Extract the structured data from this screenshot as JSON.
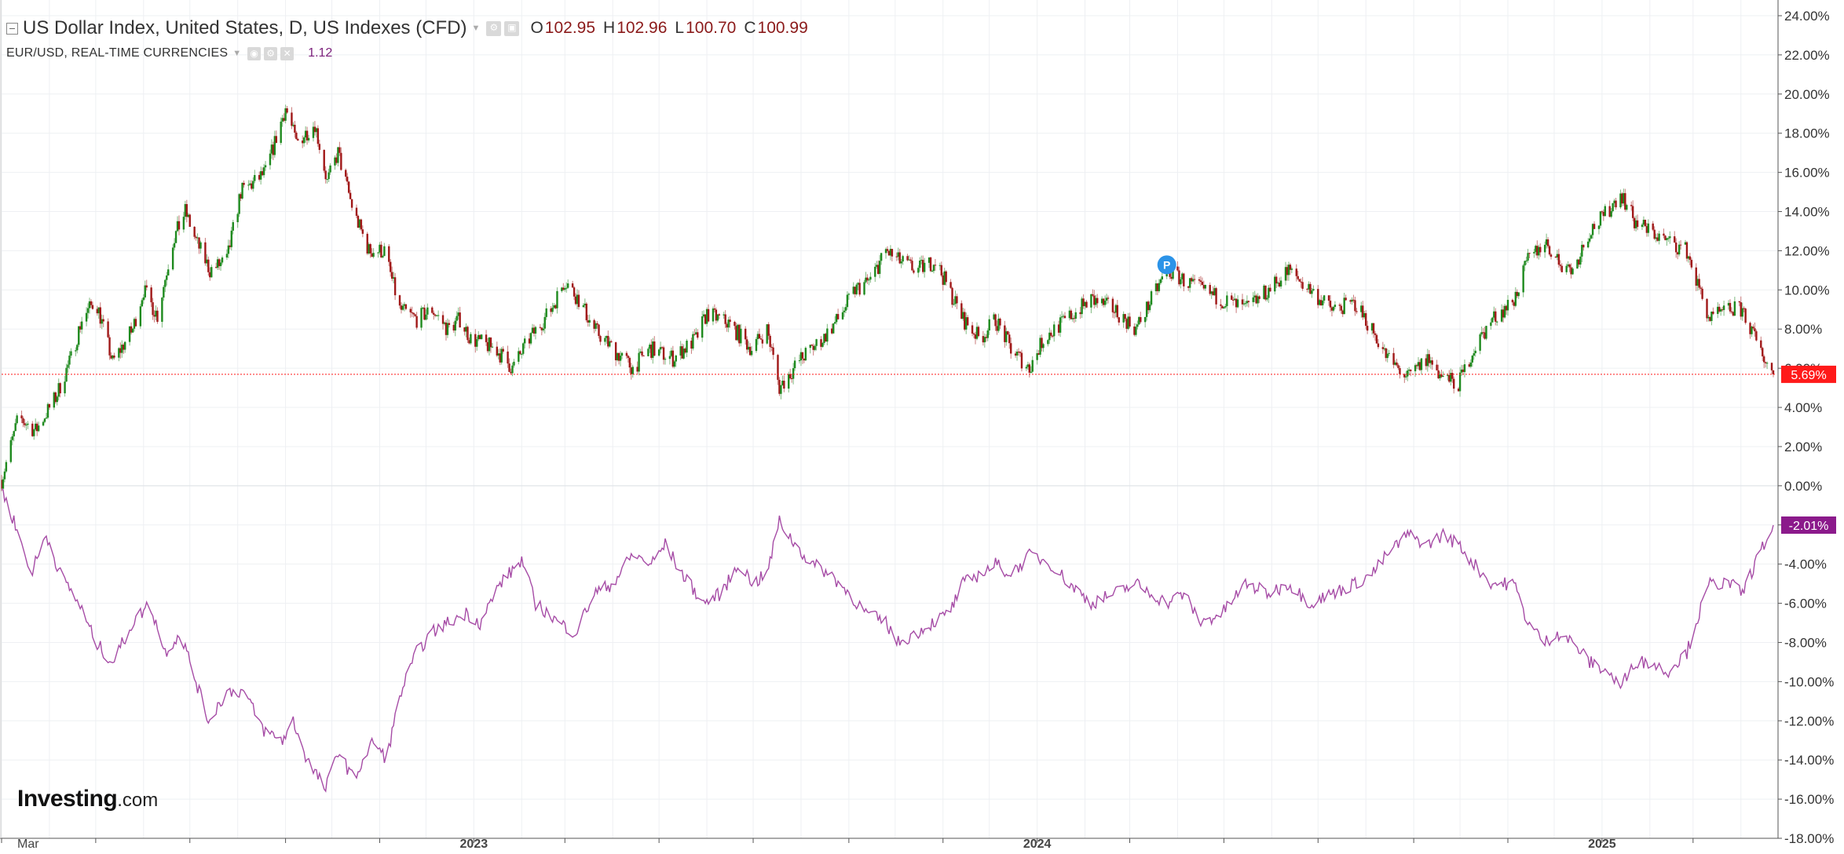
{
  "legend": {
    "main_title": "US Dollar Index, United States, D, US Indexes (CFD)",
    "ohlc": [
      {
        "key": "O",
        "value": "102.95"
      },
      {
        "key": "H",
        "value": "102.96"
      },
      {
        "key": "L",
        "value": "100.70"
      },
      {
        "key": "C",
        "value": "100.99"
      }
    ],
    "secondary_title": "EUR/USD, REAL-TIME CURRENCIES",
    "secondary_value": "1.12"
  },
  "logo": {
    "brand": "Investing",
    "suffix": ".com"
  },
  "colors": {
    "up_candle": "#1e8a1e",
    "down_candle": "#a01818",
    "eurusd_line": "#a64ca6",
    "current_marker": "#ff1a1a",
    "eurusd_marker": "#8b1a8b",
    "grid": "#eef0f3",
    "event_marker": "#2b93e8"
  },
  "chart_data": {
    "type": "line",
    "y_unit": "percent change",
    "ylim": [
      -18,
      24
    ],
    "y_ticks": [
      "24.00%",
      "22.00%",
      "20.00%",
      "18.00%",
      "16.00%",
      "14.00%",
      "12.00%",
      "10.00%",
      "8.00%",
      "6.00%",
      "4.00%",
      "2.00%",
      "0.00%",
      "-2.00%",
      "-4.00%",
      "-6.00%",
      "-8.00%",
      "-10.00%",
      "-12.00%",
      "-14.00%",
      "-16.00%",
      "-18.00%"
    ],
    "x_labels": [
      "Mar",
      "2023",
      "2024",
      "2025"
    ],
    "x_range": [
      "2022-03-01",
      "2025-04-22"
    ],
    "grid": true,
    "event_marker": {
      "label": "P",
      "date": "2024-03-25",
      "value": 11.2
    },
    "series": [
      {
        "name": "US Dollar Index",
        "style": "candlestick",
        "current_label": "5.69%",
        "last_value": 5.69,
        "points": [
          [
            "2022-03-01",
            0.3
          ],
          [
            "2022-03-12",
            3.5
          ],
          [
            "2022-03-23",
            2.8
          ],
          [
            "2022-04-05",
            4.5
          ],
          [
            "2022-04-15",
            6.5
          ],
          [
            "2022-04-22",
            8.5
          ],
          [
            "2022-05-01",
            9.5
          ],
          [
            "2022-05-12",
            6.3
          ],
          [
            "2022-05-25",
            8.0
          ],
          [
            "2022-06-01",
            10.0
          ],
          [
            "2022-06-10",
            8.7
          ],
          [
            "2022-06-20",
            12.5
          ],
          [
            "2022-06-28",
            14.0
          ],
          [
            "2022-07-05",
            12.5
          ],
          [
            "2022-07-14",
            11.0
          ],
          [
            "2022-07-25",
            11.5
          ],
          [
            "2022-08-03",
            15.0
          ],
          [
            "2022-08-12",
            15.5
          ],
          [
            "2022-08-19",
            16.0
          ],
          [
            "2022-09-01",
            19.3
          ],
          [
            "2022-09-08",
            17.5
          ],
          [
            "2022-09-20",
            18.5
          ],
          [
            "2022-09-28",
            15.5
          ],
          [
            "2022-10-05",
            17.0
          ],
          [
            "2022-10-15",
            14.0
          ],
          [
            "2022-10-25",
            12.0
          ],
          [
            "2022-11-04",
            12.0
          ],
          [
            "2022-11-14",
            9.0
          ],
          [
            "2022-11-25",
            8.5
          ],
          [
            "2022-12-05",
            9.0
          ],
          [
            "2022-12-15",
            8.0
          ],
          [
            "2022-12-23",
            8.5
          ],
          [
            "2022-12-30",
            7.5
          ],
          [
            "2023-01-15",
            7.0
          ],
          [
            "2023-01-26",
            6.0
          ],
          [
            "2023-02-06",
            7.5
          ],
          [
            "2023-02-20",
            9.0
          ],
          [
            "2023-03-01",
            10.5
          ],
          [
            "2023-03-10",
            9.5
          ],
          [
            "2023-03-20",
            8.0
          ],
          [
            "2023-04-01",
            7.0
          ],
          [
            "2023-04-14",
            6.0
          ],
          [
            "2023-04-25",
            7.0
          ],
          [
            "2023-05-10",
            6.5
          ],
          [
            "2023-05-25",
            7.5
          ],
          [
            "2023-06-01",
            8.8
          ],
          [
            "2023-06-15",
            8.3
          ],
          [
            "2023-06-30",
            7.0
          ],
          [
            "2023-07-10",
            8.0
          ],
          [
            "2023-07-18",
            5.0
          ],
          [
            "2023-08-01",
            6.5
          ],
          [
            "2023-08-15",
            7.5
          ],
          [
            "2023-08-25",
            8.5
          ],
          [
            "2023-09-05",
            10.0
          ],
          [
            "2023-09-15",
            10.5
          ],
          [
            "2023-09-25",
            12.0
          ],
          [
            "2023-10-03",
            11.5
          ],
          [
            "2023-10-15",
            11.0
          ],
          [
            "2023-10-27",
            11.5
          ],
          [
            "2023-11-05",
            10.0
          ],
          [
            "2023-11-14",
            8.5
          ],
          [
            "2023-11-25",
            7.5
          ],
          [
            "2023-12-05",
            8.5
          ],
          [
            "2023-12-15",
            7.0
          ],
          [
            "2023-12-27",
            6.0
          ],
          [
            "2024-01-05",
            7.5
          ],
          [
            "2024-01-20",
            8.5
          ],
          [
            "2024-02-05",
            9.5
          ],
          [
            "2024-02-20",
            9.0
          ],
          [
            "2024-03-05",
            8.0
          ],
          [
            "2024-03-15",
            9.5
          ],
          [
            "2024-03-25",
            11.0
          ],
          [
            "2024-04-05",
            10.5
          ],
          [
            "2024-04-16",
            10.0
          ],
          [
            "2024-04-30",
            9.5
          ],
          [
            "2024-05-15",
            9.0
          ],
          [
            "2024-05-30",
            10.0
          ],
          [
            "2024-06-12",
            11.0
          ],
          [
            "2024-06-26",
            10.0
          ],
          [
            "2024-07-10",
            9.0
          ],
          [
            "2024-07-25",
            9.3
          ],
          [
            "2024-08-05",
            8.0
          ],
          [
            "2024-08-15",
            6.5
          ],
          [
            "2024-08-28",
            5.5
          ],
          [
            "2024-09-10",
            6.5
          ],
          [
            "2024-09-20",
            5.5
          ],
          [
            "2024-09-30",
            5.2
          ],
          [
            "2024-10-10",
            7.0
          ],
          [
            "2024-10-22",
            8.5
          ],
          [
            "2024-11-05",
            9.5
          ],
          [
            "2024-11-14",
            11.5
          ],
          [
            "2024-11-25",
            12.5
          ],
          [
            "2024-12-03",
            11.5
          ],
          [
            "2024-12-13",
            11.0
          ],
          [
            "2024-12-24",
            13.0
          ],
          [
            "2025-01-05",
            14.0
          ],
          [
            "2025-01-13",
            15.0
          ],
          [
            "2025-01-22",
            13.5
          ],
          [
            "2025-02-01",
            13.0
          ],
          [
            "2025-02-12",
            12.5
          ],
          [
            "2025-02-25",
            12.0
          ],
          [
            "2025-03-05",
            10.0
          ],
          [
            "2025-03-12",
            8.5
          ],
          [
            "2025-03-25",
            9.0
          ],
          [
            "2025-04-02",
            9.0
          ],
          [
            "2025-04-10",
            7.5
          ],
          [
            "2025-04-22",
            5.69
          ]
        ]
      },
      {
        "name": "EUR/USD",
        "style": "line",
        "current_label": "-2.01%",
        "last_value": -2.01,
        "points": [
          [
            "2022-03-01",
            -0.2
          ],
          [
            "2022-03-10",
            -2.0
          ],
          [
            "2022-03-20",
            -4.5
          ],
          [
            "2022-03-30",
            -2.5
          ],
          [
            "2022-04-08",
            -4.5
          ],
          [
            "2022-04-20",
            -6.0
          ],
          [
            "2022-05-01",
            -8.0
          ],
          [
            "2022-05-12",
            -9.0
          ],
          [
            "2022-05-25",
            -7.0
          ],
          [
            "2022-06-05",
            -6.0
          ],
          [
            "2022-06-15",
            -8.5
          ],
          [
            "2022-06-25",
            -7.5
          ],
          [
            "2022-07-05",
            -10.0
          ],
          [
            "2022-07-13",
            -12.0
          ],
          [
            "2022-07-25",
            -10.5
          ],
          [
            "2022-08-05",
            -10.5
          ],
          [
            "2022-08-18",
            -12.5
          ],
          [
            "2022-08-30",
            -13.0
          ],
          [
            "2022-09-06",
            -12.0
          ],
          [
            "2022-09-15",
            -14.0
          ],
          [
            "2022-09-27",
            -15.5
          ],
          [
            "2022-10-05",
            -13.5
          ],
          [
            "2022-10-15",
            -15.0
          ],
          [
            "2022-10-28",
            -13.0
          ],
          [
            "2022-11-05",
            -14.0
          ],
          [
            "2022-11-15",
            -10.5
          ],
          [
            "2022-11-25",
            -8.5
          ],
          [
            "2022-12-05",
            -7.5
          ],
          [
            "2022-12-15",
            -7.0
          ],
          [
            "2022-12-27",
            -6.5
          ],
          [
            "2023-01-05",
            -7.0
          ],
          [
            "2023-01-18",
            -5.0
          ],
          [
            "2023-02-01",
            -3.8
          ],
          [
            "2023-02-10",
            -6.0
          ],
          [
            "2023-02-25",
            -7.0
          ],
          [
            "2023-03-08",
            -7.5
          ],
          [
            "2023-03-20",
            -5.5
          ],
          [
            "2023-04-01",
            -5.0
          ],
          [
            "2023-04-14",
            -3.5
          ],
          [
            "2023-04-26",
            -4.0
          ],
          [
            "2023-05-05",
            -3.0
          ],
          [
            "2023-05-16",
            -4.5
          ],
          [
            "2023-05-30",
            -6.0
          ],
          [
            "2023-06-10",
            -5.5
          ],
          [
            "2023-06-22",
            -4.0
          ],
          [
            "2023-07-01",
            -5.0
          ],
          [
            "2023-07-10",
            -4.5
          ],
          [
            "2023-07-18",
            -1.8
          ],
          [
            "2023-07-28",
            -3.0
          ],
          [
            "2023-08-08",
            -4.0
          ],
          [
            "2023-08-20",
            -4.5
          ],
          [
            "2023-09-01",
            -5.5
          ],
          [
            "2023-09-12",
            -6.5
          ],
          [
            "2023-09-25",
            -7.0
          ],
          [
            "2023-10-03",
            -8.0
          ],
          [
            "2023-10-15",
            -7.5
          ],
          [
            "2023-10-25",
            -7.0
          ],
          [
            "2023-11-05",
            -6.5
          ],
          [
            "2023-11-14",
            -5.0
          ],
          [
            "2023-11-25",
            -4.5
          ],
          [
            "2023-12-05",
            -4.0
          ],
          [
            "2023-12-15",
            -4.5
          ],
          [
            "2023-12-28",
            -3.5
          ],
          [
            "2024-01-10",
            -4.0
          ],
          [
            "2024-01-22",
            -5.0
          ],
          [
            "2024-02-05",
            -6.0
          ],
          [
            "2024-02-20",
            -5.5
          ],
          [
            "2024-03-05",
            -5.0
          ],
          [
            "2024-03-15",
            -5.5
          ],
          [
            "2024-03-25",
            -6.0
          ],
          [
            "2024-04-05",
            -5.5
          ],
          [
            "2024-04-16",
            -7.0
          ],
          [
            "2024-04-30",
            -6.5
          ],
          [
            "2024-05-15",
            -5.0
          ],
          [
            "2024-05-30",
            -5.5
          ],
          [
            "2024-06-12",
            -5.0
          ],
          [
            "2024-06-26",
            -6.0
          ],
          [
            "2024-07-10",
            -5.5
          ],
          [
            "2024-07-25",
            -5.0
          ],
          [
            "2024-08-05",
            -4.5
          ],
          [
            "2024-08-15",
            -3.5
          ],
          [
            "2024-08-28",
            -2.5
          ],
          [
            "2024-09-10",
            -3.0
          ],
          [
            "2024-09-20",
            -2.5
          ],
          [
            "2024-09-30",
            -3.0
          ],
          [
            "2024-10-10",
            -4.0
          ],
          [
            "2024-10-22",
            -5.0
          ],
          [
            "2024-11-05",
            -5.0
          ],
          [
            "2024-11-14",
            -7.0
          ],
          [
            "2024-11-25",
            -8.0
          ],
          [
            "2024-12-03",
            -7.5
          ],
          [
            "2024-12-13",
            -8.0
          ],
          [
            "2024-12-24",
            -9.0
          ],
          [
            "2025-01-05",
            -9.5
          ],
          [
            "2025-01-13",
            -10.3
          ],
          [
            "2025-01-22",
            -9.0
          ],
          [
            "2025-02-01",
            -9.0
          ],
          [
            "2025-02-12",
            -9.5
          ],
          [
            "2025-02-25",
            -8.5
          ],
          [
            "2025-03-05",
            -6.5
          ],
          [
            "2025-03-12",
            -5.0
          ],
          [
            "2025-03-25",
            -5.0
          ],
          [
            "2025-04-02",
            -5.5
          ],
          [
            "2025-04-10",
            -4.0
          ],
          [
            "2025-04-22",
            -2.01
          ]
        ]
      }
    ]
  }
}
